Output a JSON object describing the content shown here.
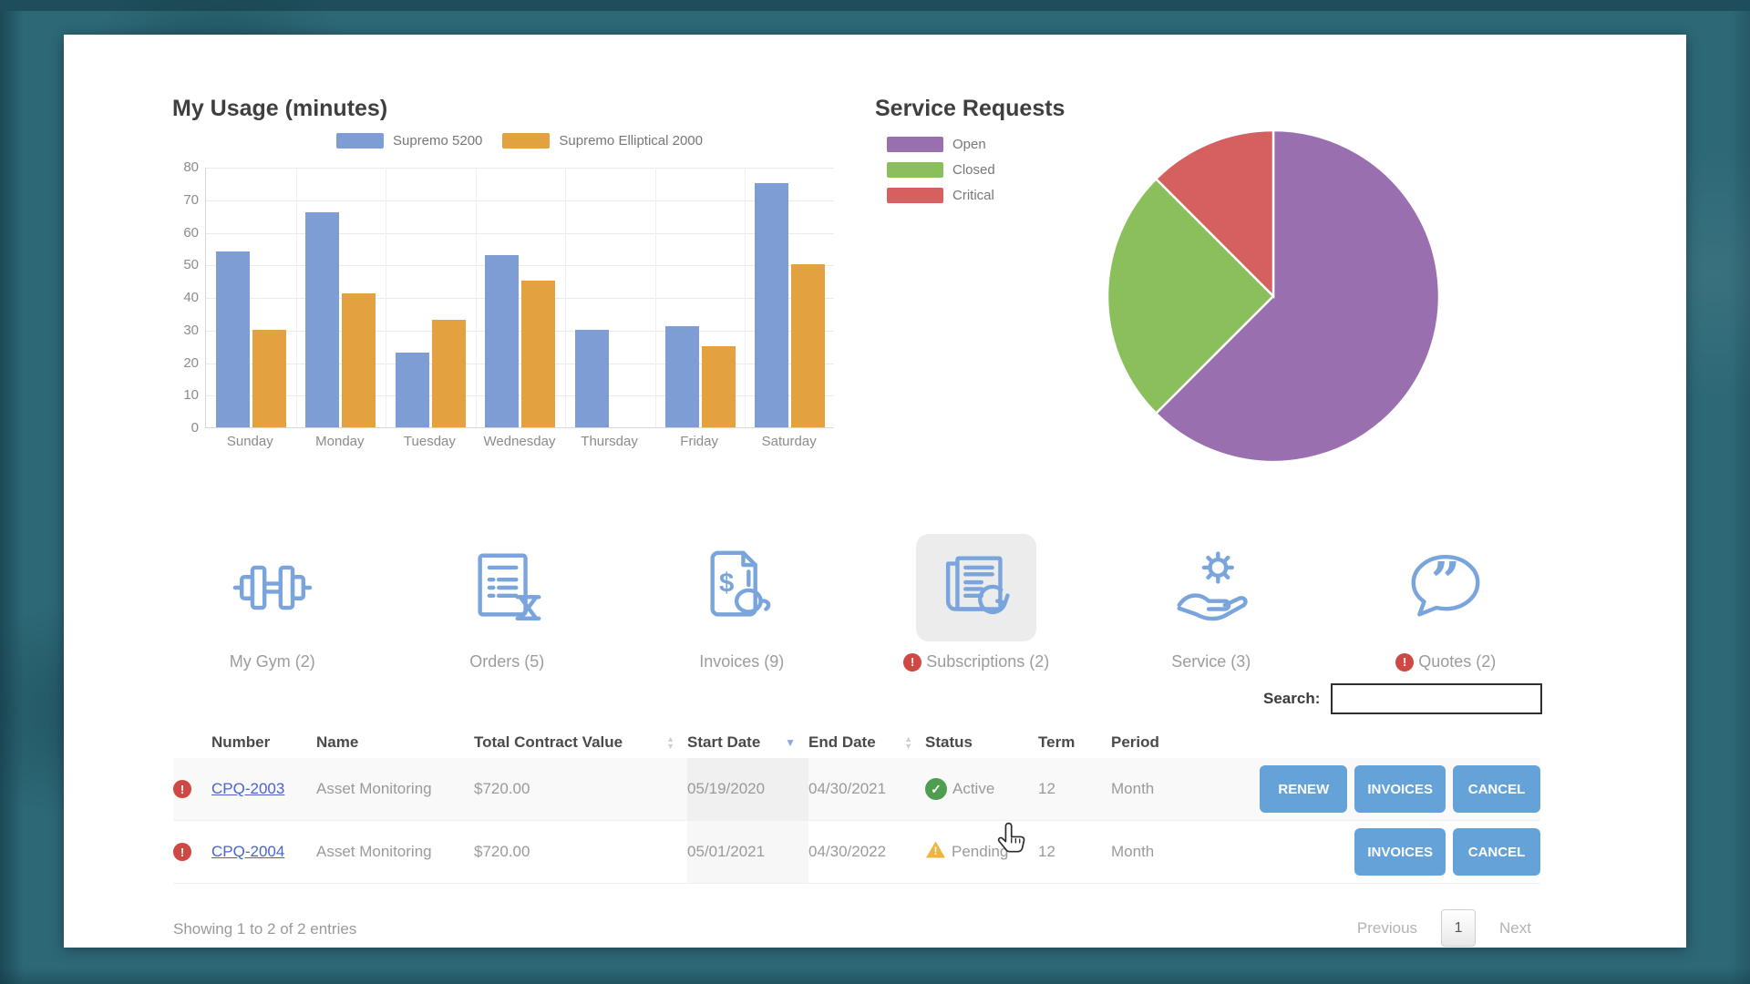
{
  "colors": {
    "page_bg": "#2d6876",
    "accent_button": "#64a2d8",
    "icon_blue": "#79a5dc",
    "link_blue": "#4a63cf",
    "alert_red": "#ce4844",
    "status_active_green": "#4f9e4f",
    "status_pending_yellow": "#f2b33d"
  },
  "chart_data": [
    {
      "type": "bar",
      "title": "My Usage (minutes)",
      "categories": [
        "Sunday",
        "Monday",
        "Tuesday",
        "Wednesday",
        "Thursday",
        "Friday",
        "Saturday"
      ],
      "series": [
        {
          "name": "Supremo 5200",
          "color": "#7e9dd4",
          "values": [
            54,
            66,
            23,
            53,
            30,
            31,
            75
          ]
        },
        {
          "name": "Supremo Elliptical 2000",
          "color": "#e4a13f",
          "values": [
            30,
            41,
            33,
            45,
            0,
            25,
            50
          ]
        }
      ],
      "xlabel": "",
      "ylabel": "",
      "ylim": [
        0,
        80
      ],
      "ytick_step": 10,
      "grid": true,
      "legend_position": "top"
    },
    {
      "type": "pie",
      "title": "Service Requests",
      "labels": [
        "Open",
        "Closed",
        "Critical"
      ],
      "values": [
        62.5,
        25,
        12.5
      ],
      "colors": [
        "#9a6fb0",
        "#8bbf5c",
        "#d56060"
      ],
      "legend_position": "left"
    }
  ],
  "tabs": [
    {
      "label": "My Gym (2)",
      "icon": "dumbbell-icon",
      "alert": false,
      "selected": false
    },
    {
      "label": "Orders (5)",
      "icon": "order-history-icon",
      "alert": false,
      "selected": false
    },
    {
      "label": "Invoices (9)",
      "icon": "invoice-icon",
      "alert": false,
      "selected": false
    },
    {
      "label": "Subscriptions (2)",
      "icon": "subscription-renewal-icon",
      "alert": true,
      "selected": true
    },
    {
      "label": "Service (3)",
      "icon": "service-hand-gear-icon",
      "alert": false,
      "selected": false
    },
    {
      "label": "Quotes (2)",
      "icon": "quote-bubble-icon",
      "alert": true,
      "selected": false
    }
  ],
  "search": {
    "label": "Search:",
    "value": "",
    "placeholder": ""
  },
  "table": {
    "headers": {
      "number": "Number",
      "name": "Name",
      "tcv": "Total Contract Value",
      "start": "Start Date",
      "end": "End Date",
      "status": "Status",
      "term": "Term",
      "period": "Period"
    },
    "sort": {
      "tcv": "none",
      "start": "desc",
      "end": "none"
    },
    "rows": [
      {
        "alert": true,
        "number": "CPQ-2003",
        "name": "Asset Monitoring",
        "tcv": "$720.00",
        "start": "05/19/2020",
        "end": "04/30/2021",
        "status": "Active",
        "status_type": "active",
        "term": "12",
        "period": "Month",
        "actions": [
          "RENEW",
          "INVOICES",
          "CANCEL"
        ]
      },
      {
        "alert": true,
        "number": "CPQ-2004",
        "name": "Asset Monitoring",
        "tcv": "$720.00",
        "start": "05/01/2021",
        "end": "04/30/2022",
        "status": "Pending",
        "status_type": "pending",
        "term": "12",
        "period": "Month",
        "actions": [
          "INVOICES",
          "CANCEL"
        ]
      }
    ]
  },
  "footer": {
    "showing": "Showing 1 to 2 of 2 entries",
    "previous": "Previous",
    "page": "1",
    "next": "Next"
  }
}
